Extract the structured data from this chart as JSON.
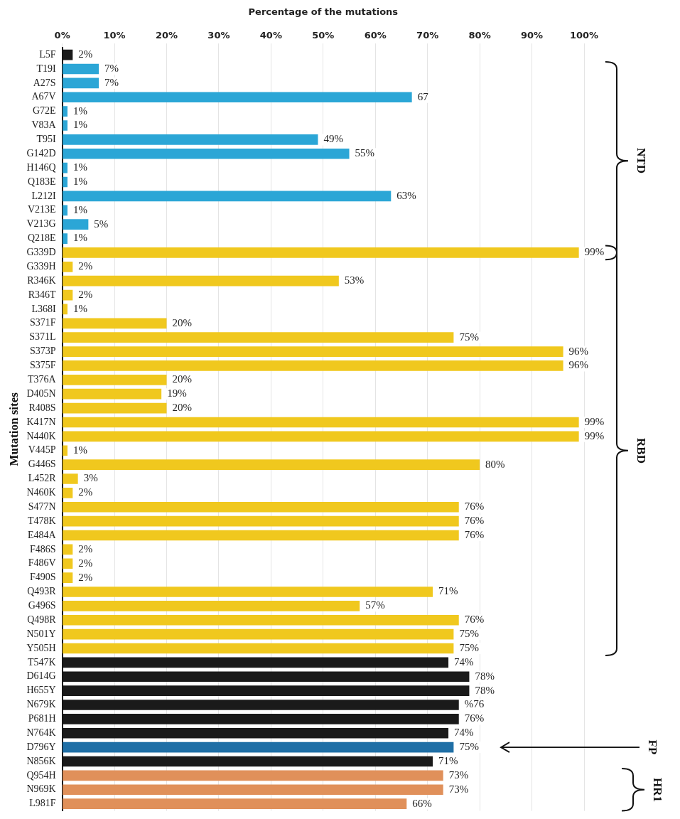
{
  "chart_data": {
    "type": "bar",
    "orientation": "horizontal",
    "xlabel": "Percentage of the mutations",
    "ylabel": "Mutation sites",
    "categories": [
      "L5F",
      "T19I",
      "A27S",
      "A67V",
      "G72E",
      "V83A",
      "T95I",
      "G142D",
      "H146Q",
      "Q183E",
      "L212I",
      "V213E",
      "V213G",
      "Q218E",
      "G339D",
      "G339H",
      "R346K",
      "R346T",
      "L368I",
      "S371F",
      "S371L",
      "S373P",
      "S375F",
      "T376A",
      "D405N",
      "R408S",
      "K417N",
      "N440K",
      "V445P",
      "G446S",
      "L452R",
      "N460K",
      "S477N",
      "T478K",
      "E484A",
      "F486S",
      "F486V",
      "F490S",
      "Q493R",
      "G496S",
      "Q498R",
      "N501Y",
      "Y505H",
      "T547K",
      "D614G",
      "H655Y",
      "N679K",
      "P681H",
      "N764K",
      "D796Y",
      "N856K",
      "Q954H",
      "N969K",
      "L981F"
    ],
    "values": [
      2,
      7,
      7,
      67,
      1,
      1,
      49,
      55,
      1,
      1,
      63,
      1,
      5,
      1,
      99,
      2,
      53,
      2,
      1,
      20,
      75,
      96,
      96,
      20,
      19,
      20,
      99,
      99,
      1,
      80,
      3,
      2,
      76,
      76,
      76,
      2,
      2,
      2,
      71,
      57,
      76,
      75,
      75,
      74,
      78,
      78,
      76,
      76,
      74,
      75,
      71,
      73,
      73,
      66
    ],
    "value_labels": [
      "2%",
      "7%",
      "7%",
      "67",
      "1%",
      "1%",
      "49%",
      "55%",
      "1%",
      "1%",
      "63%",
      "1%",
      "5%",
      "1%",
      "99%",
      "2%",
      "53%",
      "2%",
      "1%",
      "20%",
      "75%",
      "96%",
      "96%",
      "20%",
      "19%",
      "20%",
      "99%",
      "99%",
      "1%",
      "80%",
      "3%",
      "2%",
      "76%",
      "76%",
      "76%",
      "2%",
      "2%",
      "2%",
      "71%",
      "57%",
      "76%",
      "75%",
      "75%",
      "74%",
      "78%",
      "78%",
      "%76",
      "76%",
      "74%",
      "75%",
      "71%",
      "73%",
      "73%",
      "66%"
    ],
    "colors": [
      "#1a1a1a",
      "#2ba6d6",
      "#2ba6d6",
      "#2ba6d6",
      "#2ba6d6",
      "#2ba6d6",
      "#2ba6d6",
      "#2ba6d6",
      "#2ba6d6",
      "#2ba6d6",
      "#2ba6d6",
      "#2ba6d6",
      "#2ba6d6",
      "#2ba6d6",
      "#f0c81e",
      "#f0c81e",
      "#f0c81e",
      "#f0c81e",
      "#f0c81e",
      "#f0c81e",
      "#f0c81e",
      "#f0c81e",
      "#f0c81e",
      "#f0c81e",
      "#f0c81e",
      "#f0c81e",
      "#f0c81e",
      "#f0c81e",
      "#f0c81e",
      "#f0c81e",
      "#f0c81e",
      "#f0c81e",
      "#f0c81e",
      "#f0c81e",
      "#f0c81e",
      "#f0c81e",
      "#f0c81e",
      "#f0c81e",
      "#f0c81e",
      "#f0c81e",
      "#f0c81e",
      "#f0c81e",
      "#f0c81e",
      "#1a1a1a",
      "#1a1a1a",
      "#1a1a1a",
      "#1a1a1a",
      "#1a1a1a",
      "#1a1a1a",
      "#1f6fa6",
      "#1a1a1a",
      "#e0905a",
      "#e0905a",
      "#e0905a"
    ],
    "xlim": [
      0,
      100
    ],
    "xticks": [
      {
        "value": 0,
        "label": "0%"
      },
      {
        "value": 10,
        "label": "10%"
      },
      {
        "value": 20,
        "label": "20%"
      },
      {
        "value": 30,
        "label": "30%"
      },
      {
        "value": 40,
        "label": "40%"
      },
      {
        "value": 50,
        "label": "50%"
      },
      {
        "value": 60,
        "label": "60%"
      },
      {
        "value": 70,
        "label": "70%"
      },
      {
        "value": 80,
        "label": "80%"
      },
      {
        "value": 90,
        "label": "90%"
      },
      {
        "value": 100,
        "label": "100%"
      }
    ],
    "grid": "x",
    "annotations": [
      "NTD",
      "RBD",
      "FP",
      "HR1"
    ]
  }
}
